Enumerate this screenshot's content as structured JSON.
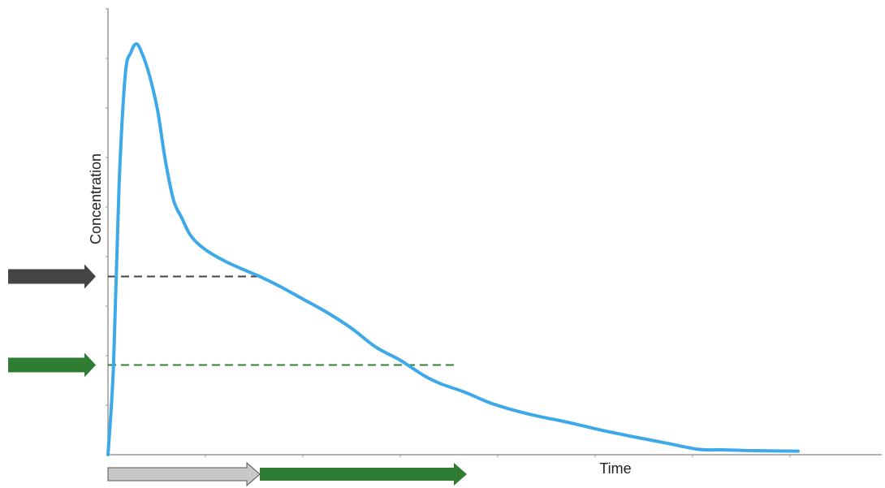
{
  "chart_data": {
    "type": "line",
    "title": "",
    "xlabel": "Time",
    "ylabel": "Concentration",
    "xlim": [
      0,
      100
    ],
    "ylim": [
      0,
      100
    ],
    "grid": false,
    "series": [
      {
        "x": [
          0,
          0.8,
          1.6,
          2.5,
          3.3,
          4.1,
          4.9,
          6.0,
          7.2,
          8.3,
          9.5,
          10.7,
          11.8,
          13.0,
          14.7,
          17.0,
          19.4,
          22.0,
          24.9,
          28.3,
          31.8,
          35.3,
          38.8,
          42.3,
          45.8,
          48.2,
          51.7,
          55.2,
          58.7,
          62.1,
          66.8,
          71.5,
          76.2,
          80.9,
          85.6,
          89.0,
          91.4,
          93.7,
          100
        ],
        "y": [
          0,
          20,
          60,
          85,
          90,
          92,
          90,
          85,
          77,
          66,
          57,
          53,
          49.5,
          47.3,
          45.3,
          43.3,
          41.6,
          39.9,
          37.7,
          34.8,
          31.8,
          28.3,
          24.1,
          21.2,
          17.7,
          15.9,
          14.0,
          11.7,
          10.0,
          8.7,
          7.2,
          5.5,
          4.0,
          2.6,
          1.2,
          1.1,
          1.0,
          0.9,
          0.8
        ]
      }
    ],
    "reference_lines": [
      {
        "y": 39.9,
        "x_end": 22.0,
        "color": "#444444"
      },
      {
        "y": 20.1,
        "x_end": 50.8,
        "color": "#2e7d32"
      }
    ],
    "axis_arrows": [
      {
        "from_x": 0,
        "to_x": 22.0,
        "color": "#c8c8c8"
      },
      {
        "from_x": 22.0,
        "to_x": 52.0,
        "color": "#2e7d32"
      }
    ],
    "colors": {
      "curve": "#3ea9e8",
      "threshold_high": "#444444",
      "threshold_low": "#2e7d32",
      "axis": "#9a9a9a"
    }
  }
}
